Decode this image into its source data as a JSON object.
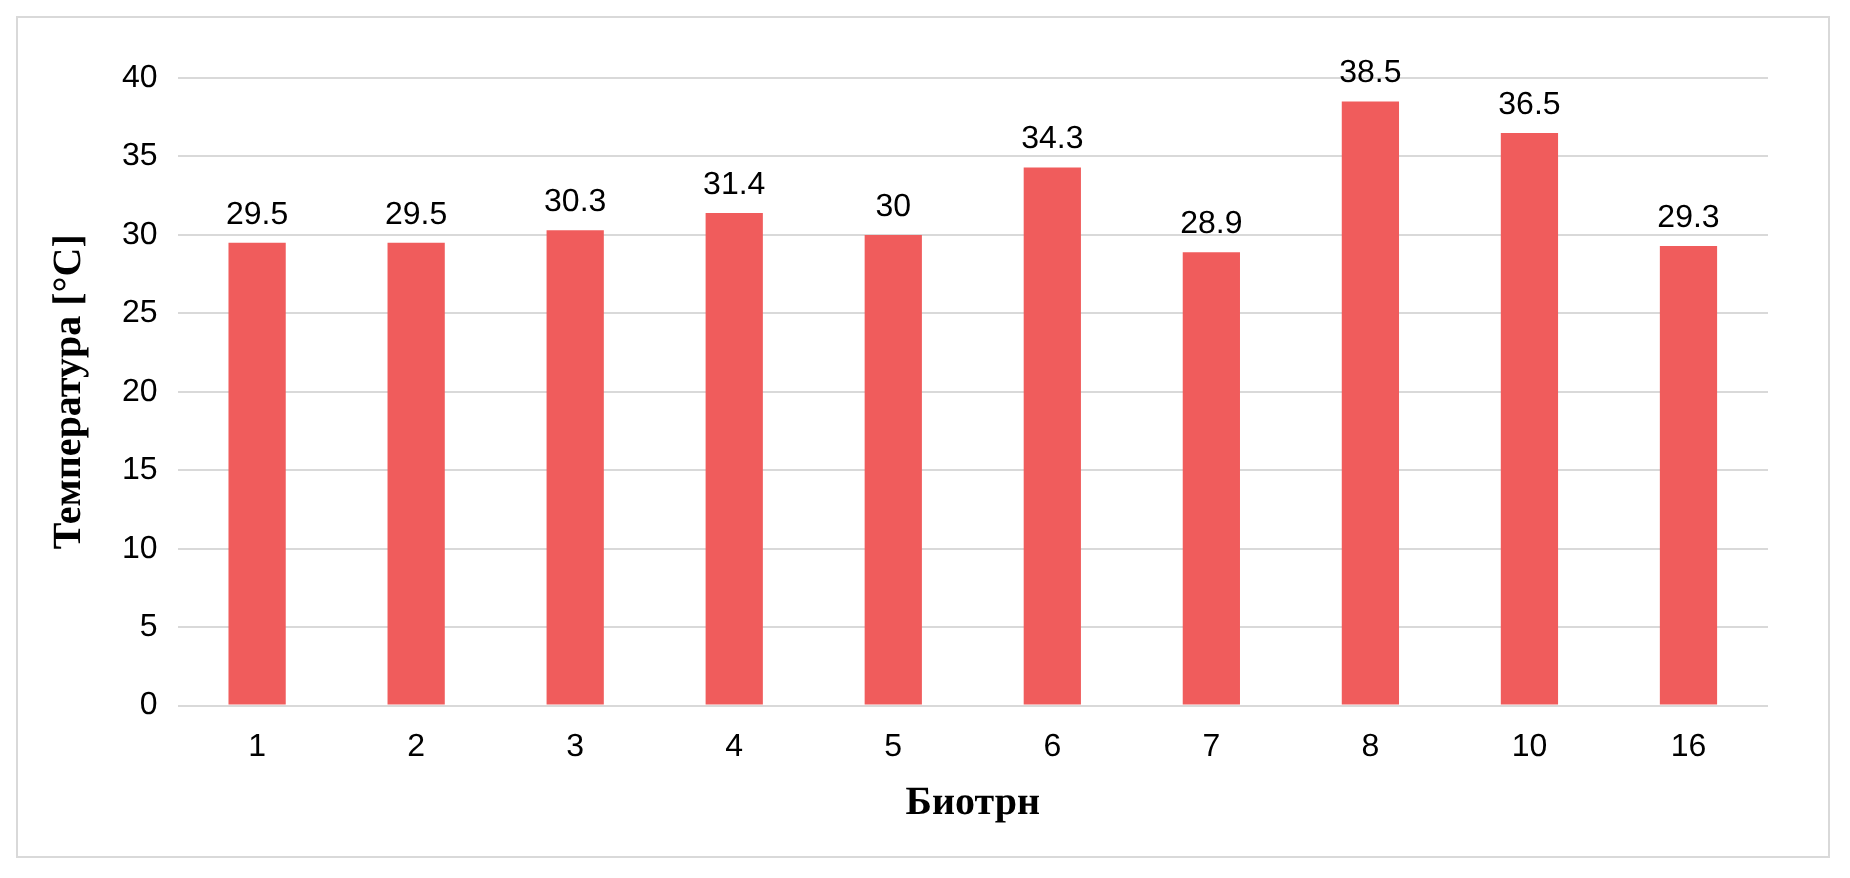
{
  "chart_data": {
    "type": "bar",
    "xlabel": "Биотрн",
    "ylabel": "Температура [°C]",
    "categories": [
      "1",
      "2",
      "3",
      "4",
      "5",
      "6",
      "7",
      "8",
      "10",
      "16"
    ],
    "values": [
      29.5,
      29.5,
      30.3,
      31.4,
      30,
      34.3,
      28.9,
      38.5,
      36.5,
      29.3
    ],
    "color": "#f05c5c",
    "ylim": [
      0,
      40
    ],
    "yticks": [
      0,
      5,
      10,
      15,
      20,
      25,
      30,
      35,
      40
    ],
    "grid": "y",
    "data_labels": true
  }
}
